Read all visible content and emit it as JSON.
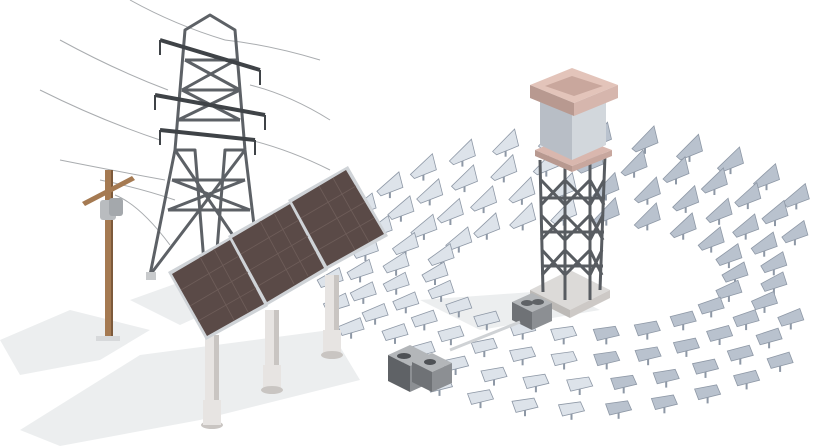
{
  "scene": {
    "background": "#ffffff",
    "colors": {
      "shadow": "#eceeef",
      "steel": "#5d6166",
      "steel_dark": "#3f4347",
      "wire": "#a9acaf",
      "wood": "#a57a52",
      "wood_dark": "#7d5a3b",
      "panel_face": "#5a4a47",
      "panel_frame": "#cfd3d7",
      "panel_grid": "#6e5d59",
      "pillar": "#e7e4e2",
      "pillar_shade": "#c9c5c2",
      "mirror_face": "#b9c2ce",
      "mirror_dark": "#8e98a6",
      "mirror_light": "#dde3ea",
      "tower_lattice": "#585c61",
      "tower_cap": "#d9b7ae",
      "tower_cap_dark": "#b89990",
      "tower_glass": "#b8bec6",
      "base": "#dcdad8",
      "unit": "#8c8f93",
      "unit_dark": "#5f6266",
      "pipe": "#cfd2d5"
    },
    "objects": [
      {
        "name": "utility-pole",
        "kind": "wooden power pole"
      },
      {
        "name": "transmission-tower",
        "kind": "lattice pylon"
      },
      {
        "name": "solar-panel-array",
        "kind": "photovoltaic panels",
        "count": 3
      },
      {
        "name": "solar-power-tower",
        "kind": "central receiver tower"
      },
      {
        "name": "heliostat-field",
        "kind": "mirror field",
        "rings": 4
      },
      {
        "name": "hvac-units",
        "kind": "cooling units",
        "count": 2
      }
    ]
  }
}
